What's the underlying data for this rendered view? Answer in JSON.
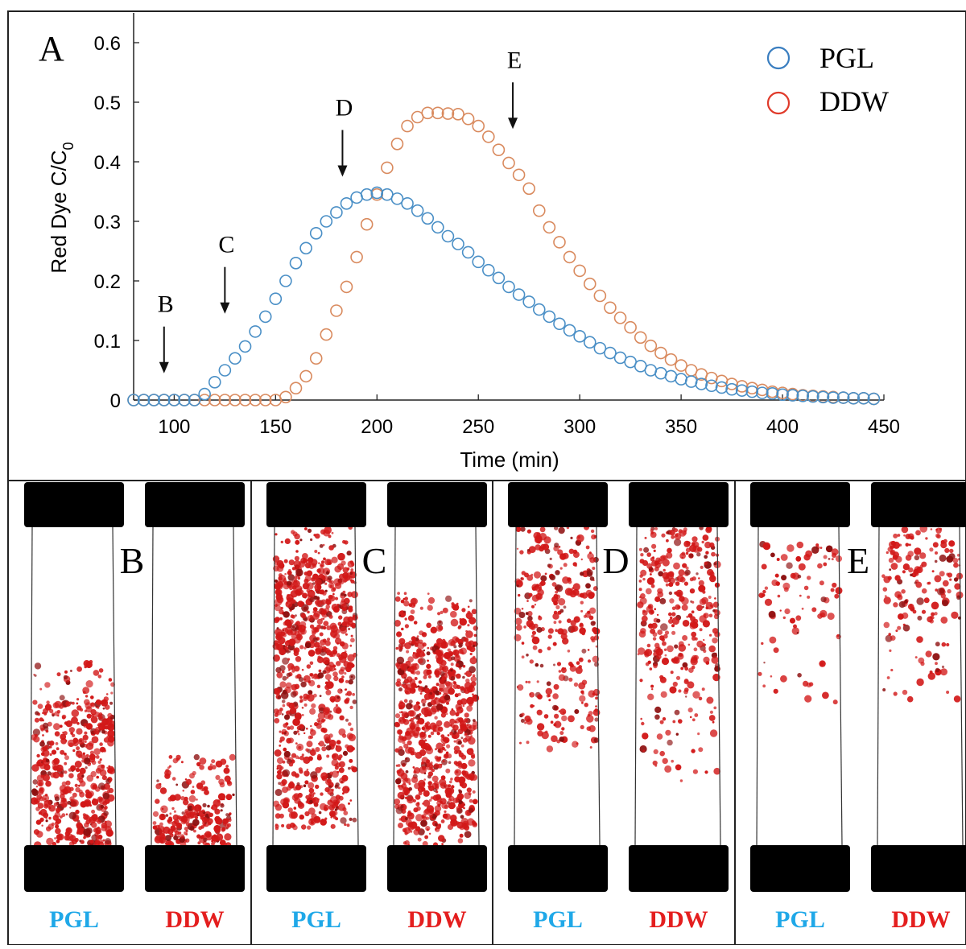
{
  "panel_a": {
    "letter": "A",
    "chart_data": {
      "type": "scatter",
      "xlabel": "Time (min)",
      "ylabel_main": "Red Dye C/C",
      "ylabel_sub": "0",
      "xlim": [
        80,
        450
      ],
      "ylim": [
        0,
        0.65
      ],
      "xticks": [
        100,
        150,
        200,
        250,
        300,
        350,
        400,
        450
      ],
      "xtick_labels": [
        "100",
        "150",
        "200",
        "250",
        "300",
        "350",
        "400",
        "450"
      ],
      "yticks": [
        0,
        0.1,
        0.2,
        0.3,
        0.4,
        0.5,
        0.6
      ],
      "ytick_labels": [
        "0",
        "0.1",
        "0.2",
        "0.3",
        "0.4",
        "0.5",
        "0.6"
      ],
      "grid": false,
      "legend_position": "top-right",
      "legend": [
        {
          "label": "PGL",
          "color": "#3A7EC0"
        },
        {
          "label": "DDW",
          "color": "#E03A2A"
        }
      ],
      "series": [
        {
          "name": "PGL",
          "color": "#4A8FC6",
          "x": [
            80,
            85,
            90,
            95,
            100,
            105,
            110,
            115,
            120,
            125,
            130,
            135,
            140,
            145,
            150,
            155,
            160,
            165,
            170,
            175,
            180,
            185,
            190,
            195,
            200,
            205,
            210,
            215,
            220,
            225,
            230,
            235,
            240,
            245,
            250,
            255,
            260,
            265,
            270,
            275,
            280,
            285,
            290,
            295,
            300,
            305,
            310,
            315,
            320,
            325,
            330,
            335,
            340,
            345,
            350,
            355,
            360,
            365,
            370,
            375,
            380,
            385,
            390,
            395,
            400,
            405,
            410,
            415,
            420,
            425,
            430,
            435,
            440,
            445
          ],
          "y": [
            0,
            0,
            0,
            0,
            0,
            0,
            0,
            0.01,
            0.03,
            0.05,
            0.07,
            0.09,
            0.115,
            0.14,
            0.17,
            0.2,
            0.23,
            0.255,
            0.28,
            0.3,
            0.315,
            0.33,
            0.34,
            0.345,
            0.348,
            0.345,
            0.338,
            0.33,
            0.318,
            0.305,
            0.29,
            0.275,
            0.262,
            0.248,
            0.232,
            0.218,
            0.205,
            0.19,
            0.177,
            0.165,
            0.152,
            0.14,
            0.128,
            0.117,
            0.107,
            0.097,
            0.087,
            0.079,
            0.071,
            0.064,
            0.057,
            0.05,
            0.045,
            0.04,
            0.035,
            0.031,
            0.027,
            0.024,
            0.021,
            0.018,
            0.016,
            0.014,
            0.012,
            0.011,
            0.009,
            0.008,
            0.007,
            0.006,
            0.005,
            0.004,
            0.004,
            0.003,
            0.003,
            0.002
          ]
        },
        {
          "name": "DDW",
          "color": "#D98A5E",
          "x": [
            80,
            85,
            90,
            95,
            100,
            105,
            110,
            115,
            120,
            125,
            130,
            135,
            140,
            145,
            150,
            155,
            160,
            165,
            170,
            175,
            180,
            185,
            190,
            195,
            200,
            205,
            210,
            215,
            220,
            225,
            230,
            235,
            240,
            245,
            250,
            255,
            260,
            265,
            270,
            275,
            280,
            285,
            290,
            295,
            300,
            305,
            310,
            315,
            320,
            325,
            330,
            335,
            340,
            345,
            350,
            355,
            360,
            365,
            370,
            375,
            380,
            385,
            390,
            395,
            400,
            405,
            410,
            415,
            420,
            425,
            430,
            435,
            440,
            445
          ],
          "y": [
            0,
            0,
            0,
            0,
            0,
            0,
            0,
            0,
            0,
            0,
            0,
            0,
            0,
            0,
            0,
            0.005,
            0.02,
            0.04,
            0.07,
            0.11,
            0.15,
            0.19,
            0.24,
            0.295,
            0.345,
            0.39,
            0.43,
            0.46,
            0.475,
            0.482,
            0.482,
            0.481,
            0.48,
            0.472,
            0.46,
            0.442,
            0.42,
            0.398,
            0.378,
            0.355,
            0.318,
            0.29,
            0.265,
            0.24,
            0.217,
            0.195,
            0.175,
            0.155,
            0.138,
            0.122,
            0.105,
            0.091,
            0.079,
            0.068,
            0.058,
            0.05,
            0.043,
            0.037,
            0.032,
            0.027,
            0.023,
            0.02,
            0.017,
            0.014,
            0.012,
            0.01,
            0.008,
            0.007,
            0.006,
            0.005,
            0.004,
            0.003,
            0.003,
            0.002
          ]
        }
      ],
      "annotations": [
        {
          "label": "B",
          "x": 95,
          "y_arrow_tip": 0.045
        },
        {
          "label": "C",
          "x": 125,
          "y_arrow_tip": 0.145
        },
        {
          "label": "D",
          "x": 183,
          "y_arrow_tip": 0.375
        },
        {
          "label": "E",
          "x": 267,
          "y_arrow_tip": 0.455
        }
      ]
    }
  },
  "photo_panels": [
    {
      "letter": "B",
      "left_label": "PGL",
      "right_label": "DDW"
    },
    {
      "letter": "C",
      "left_label": "PGL",
      "right_label": "DDW"
    },
    {
      "letter": "D",
      "left_label": "PGL",
      "right_label": "DDW"
    },
    {
      "letter": "E",
      "left_label": "PGL",
      "right_label": "DDW"
    }
  ],
  "colors": {
    "pgl_label": "#1FA8E8",
    "ddw_label": "#E41E1E",
    "dye": "#D21818",
    "dye_dark": "#8E1010"
  }
}
